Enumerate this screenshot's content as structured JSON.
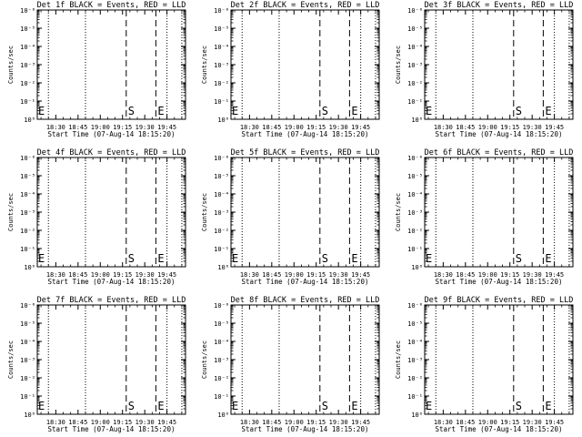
{
  "figure": {
    "background": "#ffffff",
    "foreground": "#000000"
  },
  "chart_data": [
    {
      "type": "line",
      "title": "Det 1f BLACK = Events, RED = LLD",
      "xlabel": "Start Time (07-Aug-14 18:15:20)",
      "ylabel": "Counts/sec",
      "x_tick_labels": [
        "18:30",
        "18:45",
        "19:00",
        "19:15",
        "19:30",
        "19:45"
      ],
      "y_tick_labels": [
        "10⁰",
        "10⁻¹",
        "10⁻²",
        "10⁻³",
        "10⁻⁴",
        "10⁻⁵",
        "10⁻⁶"
      ],
      "xlim": [
        0.0,
        1.0
      ],
      "ylim": [
        0,
        -6
      ],
      "dotted_lines_x": [
        0.075,
        0.325,
        0.875,
        0.975
      ],
      "dashed_lines_x": [
        0.6,
        0.8
      ],
      "markers": [
        {
          "label": "E",
          "x": 0.0
        },
        {
          "label": "S",
          "x": 0.6
        },
        {
          "label": "E",
          "x": 0.8
        }
      ],
      "series": []
    },
    {
      "type": "line",
      "title": "Det 2f BLACK = Events, RED = LLD",
      "xlabel": "Start Time (07-Aug-14 18:15:20)",
      "ylabel": "Counts/sec",
      "x_tick_labels": [
        "18:30",
        "18:45",
        "19:00",
        "19:15",
        "19:30",
        "19:45"
      ],
      "y_tick_labels": [
        "10⁰",
        "10⁻¹",
        "10⁻²",
        "10⁻³",
        "10⁻⁴",
        "10⁻⁵",
        "10⁻⁶"
      ],
      "xlim": [
        0.0,
        1.0
      ],
      "ylim": [
        0,
        -6
      ],
      "dotted_lines_x": [
        0.075,
        0.325,
        0.875,
        0.975
      ],
      "dashed_lines_x": [
        0.6,
        0.8
      ],
      "markers": [
        {
          "label": "E",
          "x": 0.0
        },
        {
          "label": "S",
          "x": 0.6
        },
        {
          "label": "E",
          "x": 0.8
        }
      ],
      "series": []
    },
    {
      "type": "line",
      "title": "Det 3f BLACK = Events, RED = LLD",
      "xlabel": "Start Time (07-Aug-14 18:15:20)",
      "ylabel": "Counts/sec",
      "x_tick_labels": [
        "18:30",
        "18:45",
        "19:00",
        "19:15",
        "19:30",
        "19:45"
      ],
      "y_tick_labels": [
        "10⁰",
        "10⁻¹",
        "10⁻²",
        "10⁻³",
        "10⁻⁴",
        "10⁻⁵",
        "10⁻⁶"
      ],
      "xlim": [
        0.0,
        1.0
      ],
      "ylim": [
        0,
        -6
      ],
      "dotted_lines_x": [
        0.075,
        0.325,
        0.875,
        0.975
      ],
      "dashed_lines_x": [
        0.6,
        0.8
      ],
      "markers": [
        {
          "label": "E",
          "x": 0.0
        },
        {
          "label": "S",
          "x": 0.6
        },
        {
          "label": "E",
          "x": 0.8
        }
      ],
      "series": []
    },
    {
      "type": "line",
      "title": "Det 4f BLACK = Events, RED = LLD",
      "xlabel": "Start Time (07-Aug-14 18:15:20)",
      "ylabel": "Counts/sec",
      "x_tick_labels": [
        "18:30",
        "18:45",
        "19:00",
        "19:15",
        "19:30",
        "19:45"
      ],
      "y_tick_labels": [
        "10⁰",
        "10⁻¹",
        "10⁻²",
        "10⁻³",
        "10⁻⁴",
        "10⁻⁵",
        "10⁻⁶"
      ],
      "xlim": [
        0.0,
        1.0
      ],
      "ylim": [
        0,
        -6
      ],
      "dotted_lines_x": [
        0.075,
        0.325,
        0.875,
        0.975
      ],
      "dashed_lines_x": [
        0.6,
        0.8
      ],
      "markers": [
        {
          "label": "E",
          "x": 0.0
        },
        {
          "label": "S",
          "x": 0.6
        },
        {
          "label": "E",
          "x": 0.8
        }
      ],
      "series": []
    },
    {
      "type": "line",
      "title": "Det 5f BLACK = Events, RED = LLD",
      "xlabel": "Start Time (07-Aug-14 18:15:20)",
      "ylabel": "Counts/sec",
      "x_tick_labels": [
        "18:30",
        "18:45",
        "19:00",
        "19:15",
        "19:30",
        "19:45"
      ],
      "y_tick_labels": [
        "10⁰",
        "10⁻¹",
        "10⁻²",
        "10⁻³",
        "10⁻⁴",
        "10⁻⁵",
        "10⁻⁶"
      ],
      "xlim": [
        0.0,
        1.0
      ],
      "ylim": [
        0,
        -6
      ],
      "dotted_lines_x": [
        0.075,
        0.325,
        0.875,
        0.975
      ],
      "dashed_lines_x": [
        0.6,
        0.8
      ],
      "markers": [
        {
          "label": "E",
          "x": 0.0
        },
        {
          "label": "S",
          "x": 0.6
        },
        {
          "label": "E",
          "x": 0.8
        }
      ],
      "series": []
    },
    {
      "type": "line",
      "title": "Det 6f BLACK = Events, RED = LLD",
      "xlabel": "Start Time (07-Aug-14 18:15:20)",
      "ylabel": "Counts/sec",
      "x_tick_labels": [
        "18:30",
        "18:45",
        "19:00",
        "19:15",
        "19:30",
        "19:45"
      ],
      "y_tick_labels": [
        "10⁰",
        "10⁻¹",
        "10⁻²",
        "10⁻³",
        "10⁻⁴",
        "10⁻⁵",
        "10⁻⁶"
      ],
      "xlim": [
        0.0,
        1.0
      ],
      "ylim": [
        0,
        -6
      ],
      "dotted_lines_x": [
        0.075,
        0.325,
        0.875,
        0.975
      ],
      "dashed_lines_x": [
        0.6,
        0.8
      ],
      "markers": [
        {
          "label": "E",
          "x": 0.0
        },
        {
          "label": "S",
          "x": 0.6
        },
        {
          "label": "E",
          "x": 0.8
        }
      ],
      "series": []
    },
    {
      "type": "line",
      "title": "Det 7f BLACK = Events, RED = LLD",
      "xlabel": "Start Time (07-Aug-14 18:15:20)",
      "ylabel": "Counts/sec",
      "x_tick_labels": [
        "18:30",
        "18:45",
        "19:00",
        "19:15",
        "19:30",
        "19:45"
      ],
      "y_tick_labels": [
        "10⁰",
        "10⁻¹",
        "10⁻²",
        "10⁻³",
        "10⁻⁴",
        "10⁻⁵",
        "10⁻⁶"
      ],
      "xlim": [
        0.0,
        1.0
      ],
      "ylim": [
        0,
        -6
      ],
      "dotted_lines_x": [
        0.075,
        0.325,
        0.875,
        0.975
      ],
      "dashed_lines_x": [
        0.6,
        0.8
      ],
      "markers": [
        {
          "label": "E",
          "x": 0.0
        },
        {
          "label": "S",
          "x": 0.6
        },
        {
          "label": "E",
          "x": 0.8
        }
      ],
      "series": []
    },
    {
      "type": "line",
      "title": "Det 8f BLACK = Events, RED = LLD",
      "xlabel": "Start Time (07-Aug-14 18:15:20)",
      "ylabel": "Counts/sec",
      "x_tick_labels": [
        "18:30",
        "18:45",
        "19:00",
        "19:15",
        "19:30",
        "19:45"
      ],
      "y_tick_labels": [
        "10⁰",
        "10⁻¹",
        "10⁻²",
        "10⁻³",
        "10⁻⁴",
        "10⁻⁵",
        "10⁻⁶"
      ],
      "xlim": [
        0.0,
        1.0
      ],
      "ylim": [
        0,
        -6
      ],
      "dotted_lines_x": [
        0.075,
        0.325,
        0.875,
        0.975
      ],
      "dashed_lines_x": [
        0.6,
        0.8
      ],
      "markers": [
        {
          "label": "E",
          "x": 0.0
        },
        {
          "label": "S",
          "x": 0.6
        },
        {
          "label": "E",
          "x": 0.8
        }
      ],
      "series": []
    },
    {
      "type": "line",
      "title": "Det 9f BLACK = Events, RED = LLD",
      "xlabel": "Start Time (07-Aug-14 18:15:20)",
      "ylabel": "Counts/sec",
      "x_tick_labels": [
        "18:30",
        "18:45",
        "19:00",
        "19:15",
        "19:30",
        "19:45"
      ],
      "y_tick_labels": [
        "10⁰",
        "10⁻¹",
        "10⁻²",
        "10⁻³",
        "10⁻⁴",
        "10⁻⁵",
        "10⁻⁶"
      ],
      "xlim": [
        0.0,
        1.0
      ],
      "ylim": [
        0,
        -6
      ],
      "dotted_lines_x": [
        0.075,
        0.325,
        0.875,
        0.975
      ],
      "dashed_lines_x": [
        0.6,
        0.8
      ],
      "markers": [
        {
          "label": "E",
          "x": 0.0
        },
        {
          "label": "S",
          "x": 0.6
        },
        {
          "label": "E",
          "x": 0.8
        }
      ],
      "series": []
    }
  ]
}
